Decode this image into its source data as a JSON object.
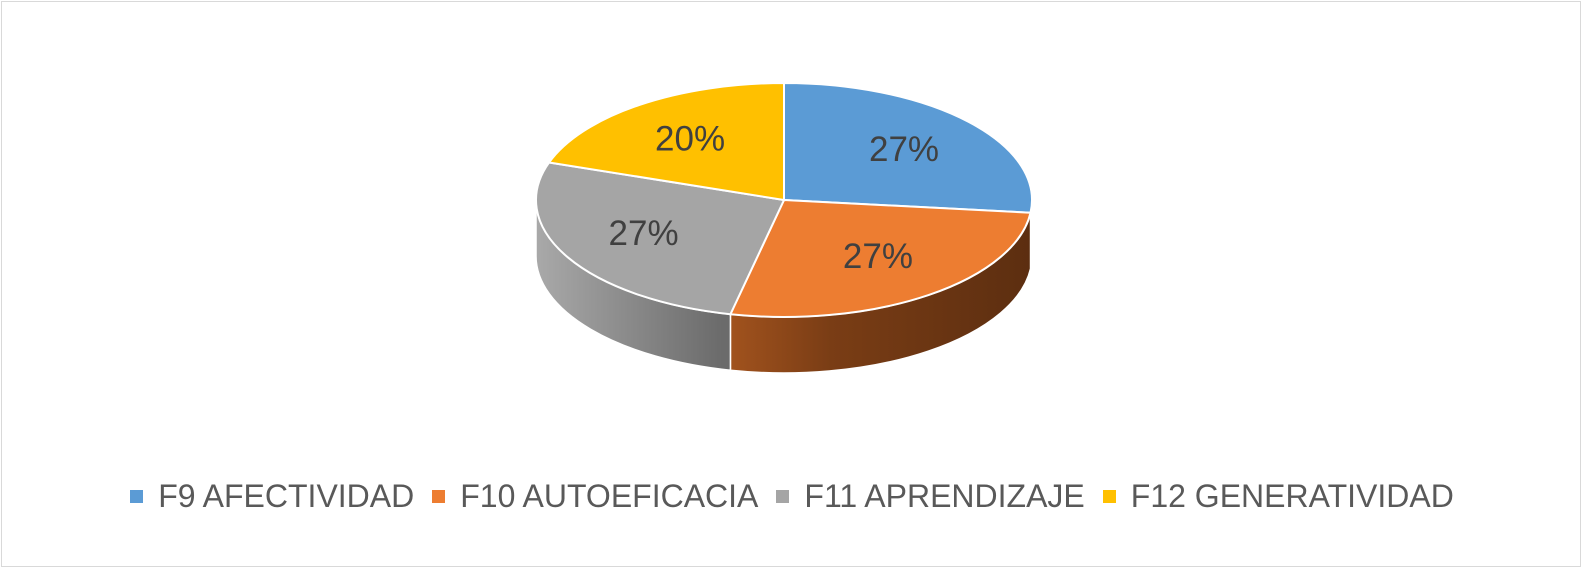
{
  "chart_data": {
    "type": "pie",
    "title": "",
    "style": "3d",
    "legend_position": "bottom",
    "categories": [
      "F9 AFECTIVIDAD",
      "F10 AUTOEFICACIA",
      "F11 APRENDIZAJE",
      "F12 GENERATIVIDAD"
    ],
    "values": [
      27,
      27,
      27,
      20
    ],
    "labels": [
      "27%",
      "27%",
      "27%",
      "20%"
    ],
    "colors": [
      "#5b9bd5",
      "#ed7d31",
      "#a5a5a5",
      "#ffc000"
    ]
  }
}
